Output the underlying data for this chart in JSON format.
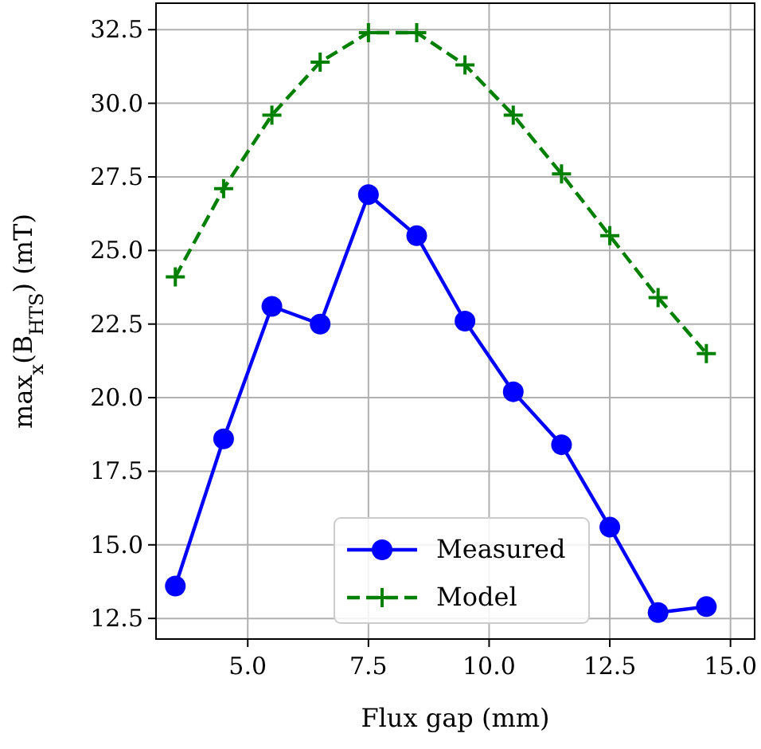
{
  "chart_data": {
    "type": "line",
    "xlabel": "Flux gap (mm)",
    "ylabel": "max$_{x}$(B$_{HTS}$) (mT)",
    "x": [
      3.5,
      4.5,
      5.5,
      6.5,
      7.5,
      8.5,
      9.5,
      10.5,
      11.5,
      12.5,
      13.5,
      14.5
    ],
    "series": [
      {
        "name": "Measured",
        "color": "#0000ff",
        "marker": "circle",
        "line_style": "solid",
        "values": [
          13.6,
          18.6,
          23.1,
          22.5,
          26.9,
          25.5,
          22.6,
          20.2,
          18.4,
          15.6,
          12.7,
          12.9
        ]
      },
      {
        "name": "Model",
        "color": "#008000",
        "marker": "cross",
        "line_style": "dashed",
        "values": [
          24.1,
          27.1,
          29.6,
          31.4,
          32.4,
          32.4,
          31.3,
          29.6,
          27.6,
          25.5,
          23.4,
          21.5
        ]
      }
    ],
    "xlim": [
      3.1,
      15.5
    ],
    "ylim": [
      11.8,
      33.4
    ],
    "xticks": [
      {
        "value": 5,
        "label": "5.0"
      },
      {
        "value": 7.5,
        "label": "7.5"
      },
      {
        "value": 10,
        "label": "10.0"
      },
      {
        "value": 12.5,
        "label": "12.5"
      },
      {
        "value": 15,
        "label": "15.0"
      }
    ],
    "yticks": [
      {
        "value": 12.5,
        "label": "12.5"
      },
      {
        "value": 15,
        "label": "15.0"
      },
      {
        "value": 17.5,
        "label": "17.5"
      },
      {
        "value": 20,
        "label": "20.0"
      },
      {
        "value": 22.5,
        "label": "22.5"
      },
      {
        "value": 25,
        "label": "25.0"
      },
      {
        "value": 27.5,
        "label": "27.5"
      },
      {
        "value": 30,
        "label": "30.0"
      },
      {
        "value": 32.5,
        "label": "32.5"
      }
    ],
    "grid": true,
    "legend": "bottom"
  }
}
